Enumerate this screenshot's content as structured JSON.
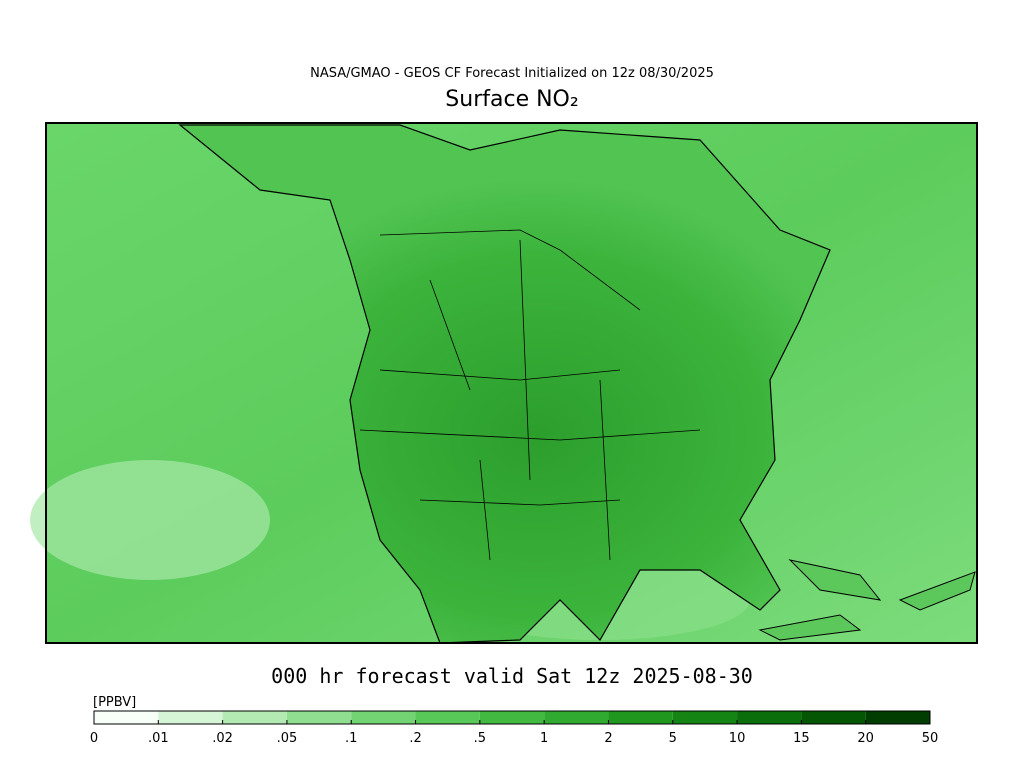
{
  "header": {
    "subtitle": "NASA/GMAO - GEOS CF Forecast Initialized on 12z 08/30/2025",
    "title": "Surface NO₂"
  },
  "footer": {
    "valid": "000 hr forecast valid Sat 12z 2025-08-30"
  },
  "colorbar": {
    "unit": "[PPBV]",
    "labels": [
      "0",
      ".01",
      ".02",
      ".05",
      ".1",
      ".2",
      ".5",
      "1",
      "2",
      "5",
      "10",
      "15",
      "20",
      "50"
    ],
    "colors": [
      "#f8fff8",
      "#d6f4d6",
      "#b3eab3",
      "#90df90",
      "#72d472",
      "#58c858",
      "#42ba42",
      "#30aa30",
      "#209820",
      "#148414",
      "#0a6e0a",
      "#045604",
      "#013c01"
    ]
  }
}
